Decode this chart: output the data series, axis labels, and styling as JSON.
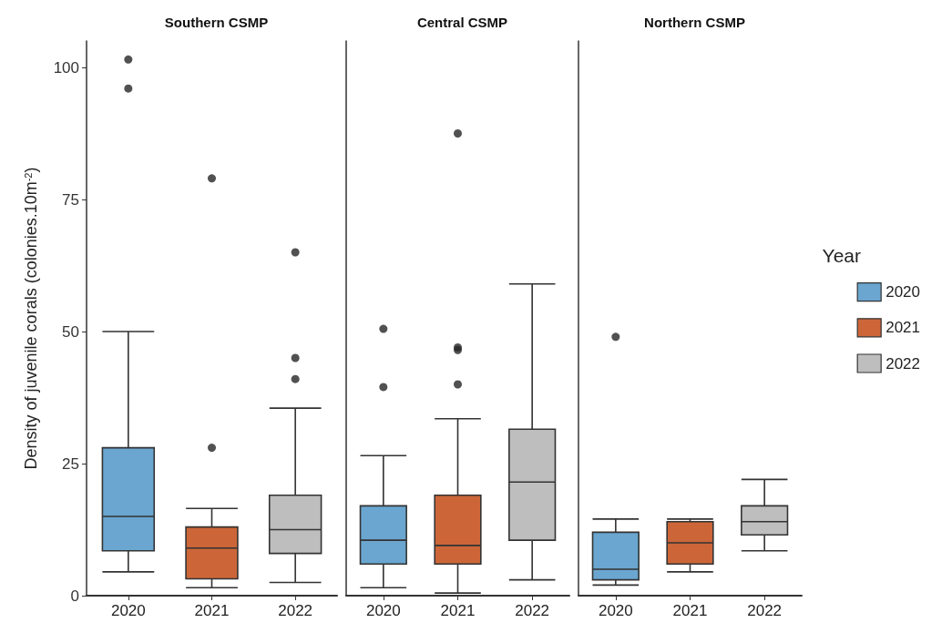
{
  "chart_data": [
    {
      "type": "box",
      "title": "Southern CSMP",
      "ylabel": "Density of juvenile corals (colonies.10m$^{-2}$)",
      "categories": [
        "2020",
        "2021",
        "2022"
      ],
      "ylim": [
        0,
        105
      ],
      "yticks": [
        0,
        25,
        50,
        75,
        100
      ],
      "grid": false,
      "series": [
        {
          "color": "#6aa6cf",
          "boxes": [
            {
              "low": 4.5,
              "q1": 8.5,
              "median": 15,
              "q3": 28,
              "high": 50,
              "outliers": [
                101.5,
                96
              ]
            },
            null,
            null
          ]
        },
        {
          "color": "#cc6639",
          "boxes": [
            null,
            {
              "low": 1.5,
              "q1": 3.2,
              "median": 9,
              "q3": 13,
              "high": 16.5,
              "outliers": [
                79,
                28
              ]
            },
            null
          ]
        },
        {
          "color": "#bebebe",
          "boxes": [
            null,
            null,
            {
              "low": 2.5,
              "q1": 8,
              "median": 12.5,
              "q3": 19,
              "high": 35.5,
              "outliers": [
                65,
                45,
                41
              ]
            }
          ]
        }
      ]
    },
    {
      "type": "box",
      "title": "Central CSMP",
      "categories": [
        "2020",
        "2021",
        "2022"
      ],
      "ylim": [
        0,
        105
      ],
      "yticks": [
        0,
        25,
        50,
        75,
        100
      ],
      "grid": false,
      "tick_labels": "x",
      "series": [
        {
          "color": "#6aa6cf",
          "boxes": [
            {
              "low": 1.5,
              "q1": 6,
              "median": 10.5,
              "q3": 17,
              "high": 26.5,
              "outliers": [
                50.5,
                39.5
              ]
            },
            null,
            null
          ]
        },
        {
          "color": "#cc6639",
          "boxes": [
            null,
            {
              "low": 0.5,
              "q1": 6,
              "median": 9.5,
              "q3": 19,
              "high": 33.5,
              "outliers": [
                87.5,
                47,
                46.5,
                40
              ]
            },
            null
          ]
        },
        {
          "color": "#bebebe",
          "boxes": [
            null,
            null,
            {
              "low": 3,
              "q1": 10.5,
              "median": 21.5,
              "q3": 31.5,
              "high": 59
            }
          ]
        }
      ]
    },
    {
      "type": "box",
      "title": "Northern CSMP",
      "categories": [
        "2020",
        "2021",
        "2022"
      ],
      "ylim": [
        0,
        105
      ],
      "yticks": [
        0,
        25,
        50,
        75,
        100
      ],
      "grid": false,
      "tick_labels": "x",
      "legend": "right",
      "legend_title": "Year",
      "series": [
        {
          "name": "2020",
          "color": "#6aa6cf",
          "boxes": [
            {
              "low": 2,
              "q1": 3,
              "median": 5,
              "q3": 12,
              "high": 14.5,
              "outliers": [
                49
              ]
            },
            null,
            null
          ]
        },
        {
          "name": "2021",
          "color": "#cc6639",
          "boxes": [
            null,
            {
              "low": 4.5,
              "q1": 6,
              "median": 10,
              "q3": 14,
              "high": 14.5
            },
            null
          ]
        },
        {
          "name": "2022",
          "color": "#bebebe",
          "boxes": [
            null,
            null,
            {
              "low": 8.5,
              "q1": 11.5,
              "median": 14,
              "q3": 17,
              "high": 22
            }
          ]
        }
      ]
    }
  ]
}
